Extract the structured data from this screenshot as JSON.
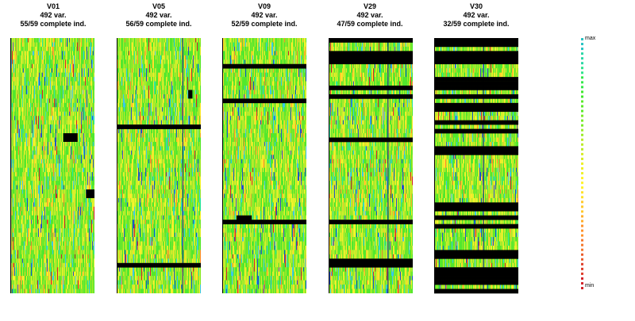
{
  "chart_data": {
    "type": "heatmap",
    "rows_total": 59,
    "panels": [
      {
        "id": "V01",
        "variables": "492 var.",
        "complete": "55/59 complete ind.",
        "missing_rows": [],
        "missing_blocks": [
          {
            "row": 22,
            "col_from": 0.63,
            "col_to": 0.8
          },
          {
            "row": 35,
            "col_from": 0.9,
            "col_to": 1.0
          }
        ],
        "dark_columns": [
          0.0
        ]
      },
      {
        "id": "V05",
        "variables": "492 var.",
        "complete": "56/59 complete ind.",
        "missing_rows": [
          20,
          52
        ],
        "missing_blocks": [
          {
            "row": 12,
            "col_from": 0.85,
            "col_to": 0.9
          }
        ],
        "dark_columns": [
          0.78
        ]
      },
      {
        "id": "V09",
        "variables": "492 var.",
        "complete": "52/59 complete ind.",
        "missing_rows": [
          6,
          14,
          42
        ],
        "missing_blocks": [
          {
            "row": 41,
            "col_from": 0.17,
            "col_to": 0.35
          }
        ],
        "dark_columns": []
      },
      {
        "id": "V29",
        "variables": "492 var.",
        "complete": "47/59 complete ind.",
        "missing_rows": [
          0,
          3,
          4,
          5,
          11,
          13,
          23,
          42,
          51,
          52
        ],
        "missing_blocks": [],
        "dark_columns": [
          0.7
        ]
      },
      {
        "id": "V30",
        "variables": "492 var.",
        "complete": "32/59 complete ind.",
        "missing_rows": [
          0,
          1,
          3,
          4,
          5,
          9,
          10,
          11,
          13,
          15,
          16,
          19,
          21,
          25,
          26,
          38,
          39,
          41,
          43,
          49,
          50,
          53,
          54,
          55,
          56,
          58
        ],
        "missing_blocks": [],
        "dark_columns": [
          0.58
        ]
      }
    ],
    "legend": {
      "max_label": "max",
      "min_label": "min",
      "colors": [
        "#27c3c3",
        "#2bd7a6",
        "#2ee38c",
        "#33e84a",
        "#3ee82c",
        "#5aea2a",
        "#7aeb2a",
        "#9cec2a",
        "#bdeb2a",
        "#d8ec2a",
        "#eef02a",
        "#fff22a",
        "#ffe22a",
        "#ffc92a",
        "#ffae2a",
        "#ff922a",
        "#f5772a",
        "#ea5b2a",
        "#de3e2a",
        "#d2232a"
      ]
    },
    "cell_colors": [
      "#2ee7a0",
      "#52e82d",
      "#7fe92b",
      "#a5ea2b",
      "#c6ec2b",
      "#e1f02b",
      "#f6f42b",
      "#ffe92b",
      "#ffcf2b",
      "#ffb02b",
      "#ff8a2b",
      "#3ac8e8",
      "#1f52c8",
      "#d2232a"
    ]
  }
}
